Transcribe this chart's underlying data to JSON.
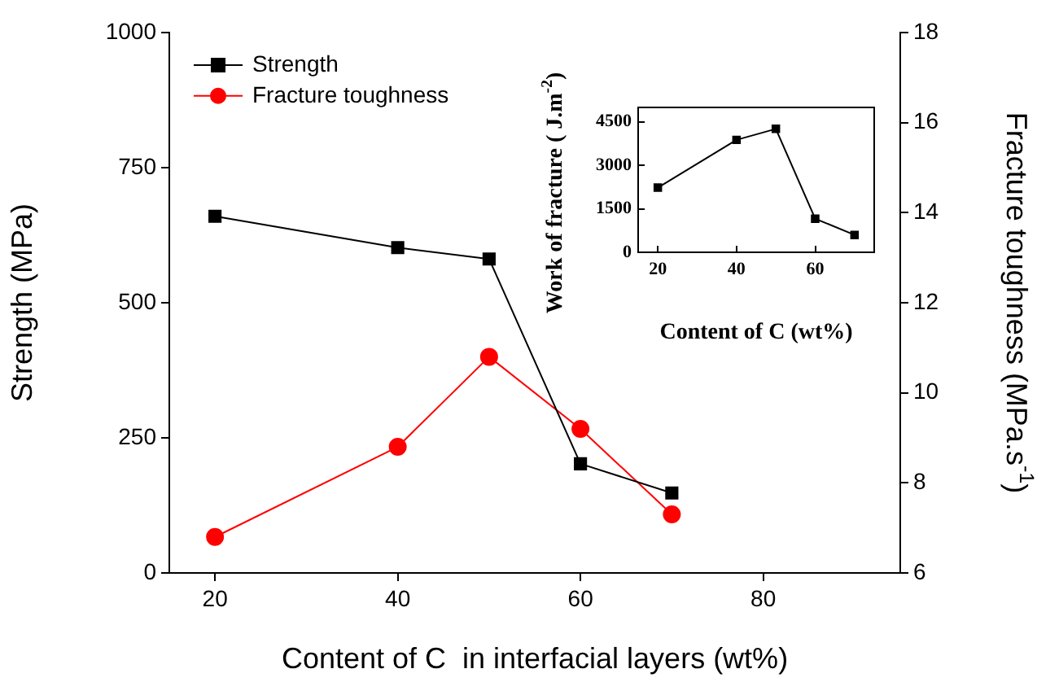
{
  "chart_data": [
    {
      "type": "line",
      "xlabel": "Content of C  in interfacial layers (wt%)",
      "ylabel": "Strength (MPa)",
      "y2label": "Fracture toughness (MPa.s$^{-1}$)",
      "x": [
        20,
        40,
        50,
        60,
        70
      ],
      "xlim": [
        15,
        95
      ],
      "xticks": [
        20,
        40,
        60,
        80
      ],
      "ylim": [
        0,
        1000
      ],
      "yticks": [
        0,
        250,
        500,
        750,
        1000
      ],
      "y2lim": [
        6,
        18
      ],
      "y2ticks": [
        6,
        8,
        10,
        12,
        14,
        16,
        18
      ],
      "legend": "top left",
      "grid": false,
      "series": [
        {
          "name": "Strength",
          "color": "#000000",
          "marker": "square",
          "values": [
            660,
            602,
            581,
            202,
            148
          ]
        },
        {
          "name": "Fracture toughness",
          "color": "#ff0000",
          "marker": "circle",
          "axis": "y2",
          "values": [
            6.8,
            8.8,
            10.8,
            9.2,
            7.3
          ]
        }
      ]
    },
    {
      "type": "line",
      "xlabel": "Content of C (wt%)",
      "ylabel": "Work of fracture ( J.m$^{-2}$)",
      "x": [
        20,
        40,
        50,
        60,
        70
      ],
      "xlim": [
        15,
        75
      ],
      "xticks": [
        20,
        40,
        60
      ],
      "ylim": [
        0,
        5000
      ],
      "yticks": [
        0,
        1500,
        3000,
        4500
      ],
      "legend": false,
      "grid": false,
      "series": [
        {
          "color": "#000000",
          "marker": "square",
          "values": [
            2230,
            3880,
            4260,
            1160,
            600
          ]
        }
      ]
    }
  ]
}
